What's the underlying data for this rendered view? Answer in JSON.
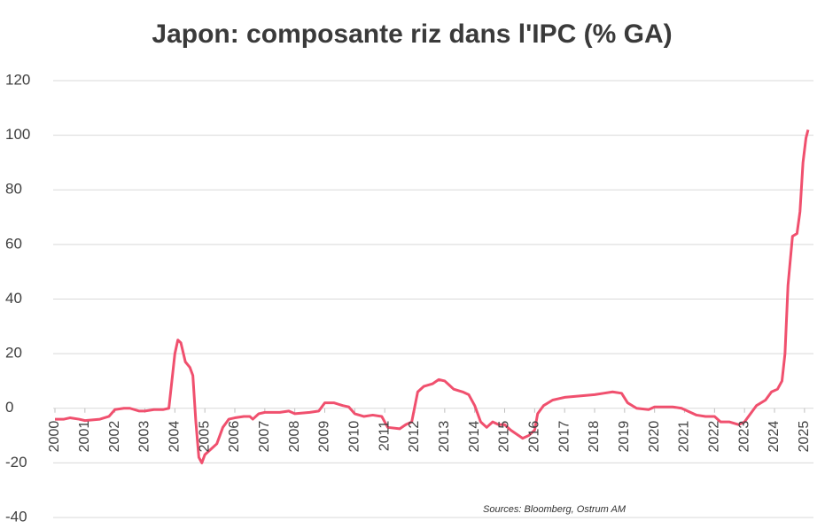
{
  "chart_data": {
    "type": "line",
    "title": "Japon: composante riz dans l'IPC (% GA)",
    "source": "Sources: Bloomberg, Ostrum AM",
    "x": [
      2000.0,
      2000.3,
      2000.5,
      2000.8,
      2001.0,
      2001.5,
      2001.8,
      2002.0,
      2002.3,
      2002.5,
      2002.8,
      2003.0,
      2003.3,
      2003.6,
      2003.8,
      2003.9,
      2004.0,
      2004.1,
      2004.2,
      2004.35,
      2004.5,
      2004.6,
      2004.7,
      2004.8,
      2004.9,
      2005.0,
      2005.2,
      2005.4,
      2005.6,
      2005.8,
      2006.0,
      2006.3,
      2006.5,
      2006.6,
      2006.8,
      2007.0,
      2007.5,
      2007.8,
      2008.0,
      2008.5,
      2008.8,
      2009.0,
      2009.3,
      2009.6,
      2009.8,
      2010.0,
      2010.3,
      2010.6,
      2010.9,
      2011.1,
      2011.5,
      2011.7,
      2011.9,
      2012.1,
      2012.3,
      2012.6,
      2012.8,
      2013.0,
      2013.3,
      2013.6,
      2013.8,
      2014.0,
      2014.2,
      2014.4,
      2014.6,
      2014.8,
      2015.0,
      2015.2,
      2015.4,
      2015.6,
      2015.8,
      2016.0,
      2016.1,
      2016.3,
      2016.6,
      2016.8,
      2017.0,
      2017.5,
      2018.0,
      2018.3,
      2018.6,
      2018.9,
      2019.1,
      2019.4,
      2019.8,
      2020.0,
      2020.3,
      2020.6,
      2020.9,
      2021.1,
      2021.4,
      2021.7,
      2022.0,
      2022.2,
      2022.5,
      2022.8,
      2023.0,
      2023.2,
      2023.4,
      2023.7,
      2023.9,
      2024.1,
      2024.25,
      2024.35,
      2024.45,
      2024.6,
      2024.75,
      2024.85,
      2024.95,
      2025.05,
      2025.12
    ],
    "values": [
      -4,
      -4,
      -3.5,
      -4,
      -4.5,
      -4,
      -3,
      -0.5,
      0,
      0,
      -1,
      -1,
      -0.5,
      -0.5,
      0,
      10,
      20,
      25,
      24,
      17,
      15,
      12,
      -5,
      -18,
      -20,
      -17,
      -15,
      -13,
      -7,
      -4,
      -3.5,
      -3,
      -3,
      -4,
      -2,
      -1.5,
      -1.5,
      -1,
      -2,
      -1.5,
      -1,
      2,
      2,
      1,
      0.5,
      -2,
      -3,
      -2.5,
      -3,
      -7,
      -7.5,
      -6,
      -5,
      6,
      8,
      9,
      10.5,
      10,
      7,
      6,
      5,
      1,
      -5,
      -7,
      -5,
      -6,
      -6,
      -8,
      -9.5,
      -11,
      -10,
      -8,
      -2,
      1,
      3,
      3.5,
      4,
      4.5,
      5,
      5.5,
      6,
      5.5,
      2,
      0,
      -0.5,
      0.5,
      0.5,
      0.5,
      0,
      -1,
      -2.5,
      -3,
      -3,
      -5,
      -5,
      -6,
      -5,
      -2,
      1,
      3,
      6,
      7,
      10,
      20,
      45,
      63,
      64,
      72,
      90,
      99,
      102
    ],
    "color": "#f0506e",
    "xlim": [
      2000,
      2025.3
    ],
    "xticks": [
      2000,
      2001,
      2002,
      2003,
      2004,
      2005,
      2006,
      2007,
      2008,
      2009,
      2010,
      2011,
      2012,
      2013,
      2014,
      2015,
      2016,
      2017,
      2018,
      2019,
      2020,
      2021,
      2022,
      2023,
      2024,
      2025
    ],
    "ylim": [
      -40,
      120
    ],
    "yticks": [
      -40,
      -20,
      0,
      20,
      40,
      60,
      80,
      100,
      120
    ],
    "grid": true
  }
}
